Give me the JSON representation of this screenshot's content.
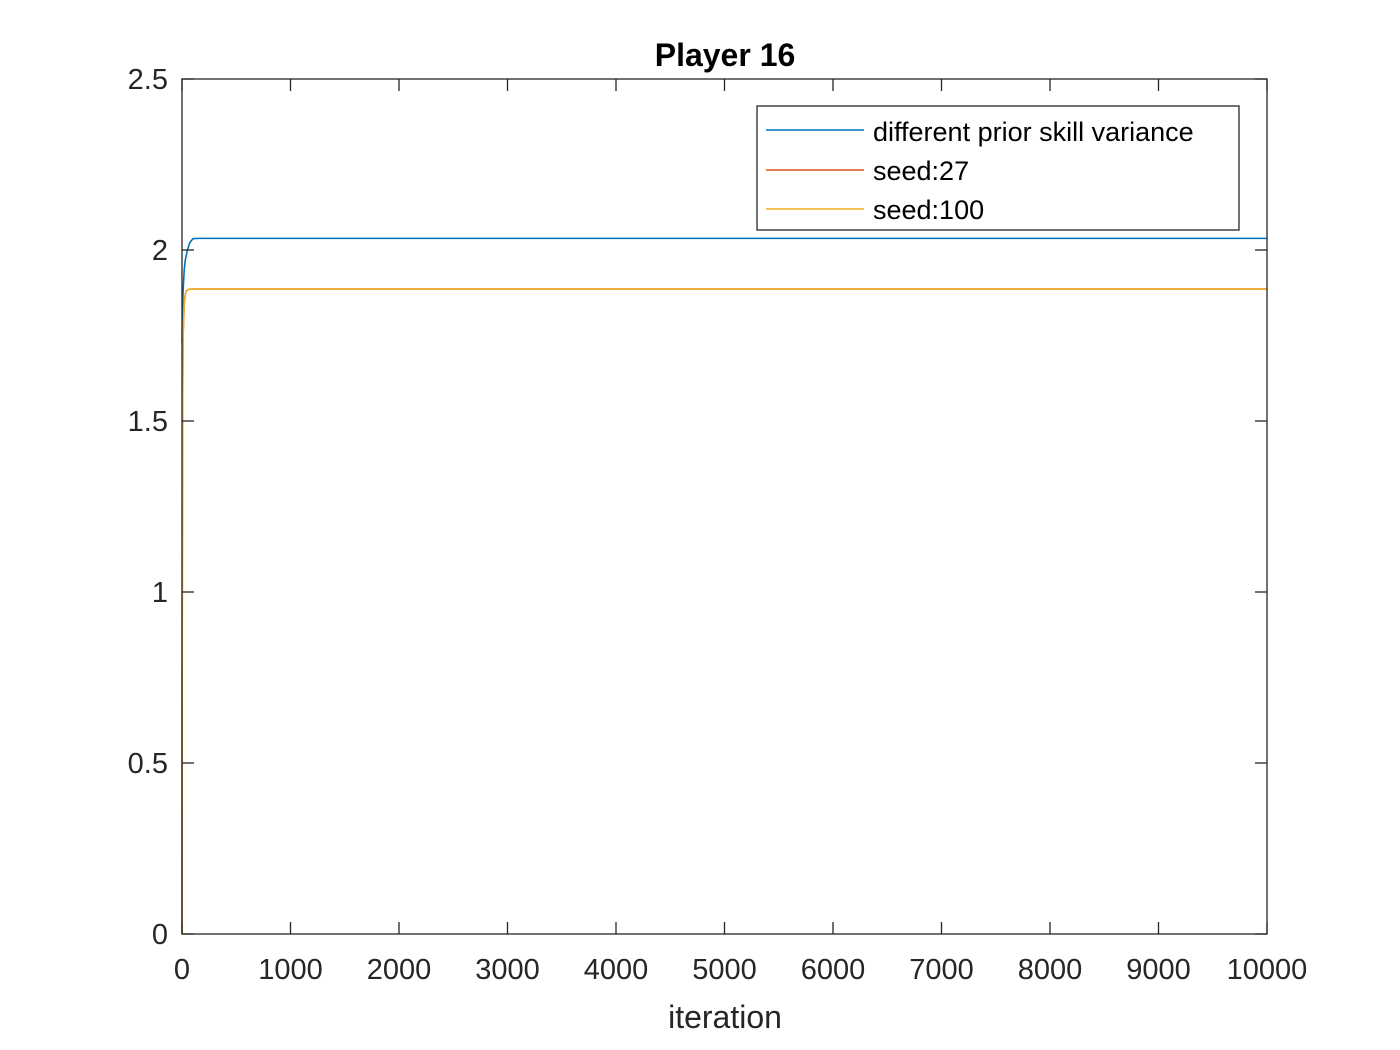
{
  "chart_data": {
    "type": "line",
    "title": "Player 16",
    "xlabel": "iteration",
    "ylabel": "",
    "xlim": [
      0,
      10000
    ],
    "ylim": [
      0,
      2.5
    ],
    "xticks": [
      0,
      1000,
      2000,
      3000,
      4000,
      5000,
      6000,
      7000,
      8000,
      9000,
      10000
    ],
    "xtick_labels": [
      "0",
      "1000",
      "2000",
      "3000",
      "4000",
      "5000",
      "6000",
      "7000",
      "8000",
      "9000",
      "10000"
    ],
    "yticks": [
      0,
      0.5,
      1,
      1.5,
      2,
      2.5
    ],
    "ytick_labels": [
      "0",
      "0.5",
      "1",
      "1.5",
      "2",
      "2.5"
    ],
    "grid": false,
    "legend_position": "top-right",
    "series": [
      {
        "name": "different prior skill variance",
        "color": "#0072BD",
        "x": [
          0,
          5,
          10,
          20,
          30,
          50,
          70,
          100,
          150,
          300,
          1000,
          5000,
          10000
        ],
        "y": [
          1.73,
          1.83,
          1.88,
          1.94,
          1.97,
          2.0,
          2.02,
          2.033,
          2.034,
          2.034,
          2.034,
          2.034,
          2.034
        ]
      },
      {
        "name": "seed:27",
        "color": "#D95319",
        "x": [
          0,
          2,
          5,
          10,
          20,
          30,
          40,
          60,
          100,
          200,
          1000,
          5000,
          10000
        ],
        "y": [
          0,
          0.9,
          1.5,
          1.75,
          1.84,
          1.87,
          1.88,
          1.885,
          1.886,
          1.886,
          1.886,
          1.886,
          1.886
        ]
      },
      {
        "name": "seed:100",
        "color": "#EDB120",
        "x": [
          0,
          2,
          5,
          10,
          20,
          30,
          40,
          60,
          100,
          200,
          1000,
          5000,
          10000
        ],
        "y": [
          0,
          0.9,
          1.5,
          1.75,
          1.84,
          1.87,
          1.88,
          1.885,
          1.886,
          1.886,
          1.886,
          1.886,
          1.886
        ]
      }
    ]
  }
}
